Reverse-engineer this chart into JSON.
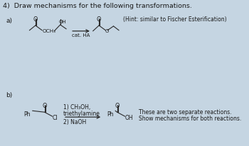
{
  "title": "4)  Draw mechanisms for the following transformations.",
  "bg_color": "#c5d5e2",
  "text_color": "#1a1a1a",
  "title_fontsize": 6.8,
  "label_fontsize": 6.5,
  "small_fontsize": 5.8,
  "hint_text": "(Hint: similar to Fischer Esterification)",
  "reaction_a_label": "a)",
  "reaction_b_label": "b)",
  "cat_ha": "cat. HA",
  "note_line1": "These are two separate reactions.",
  "note_line2": "Show mechanisms for both reactions.",
  "arrow_color": "#2a2a2a",
  "line_color": "#2a2a2a"
}
